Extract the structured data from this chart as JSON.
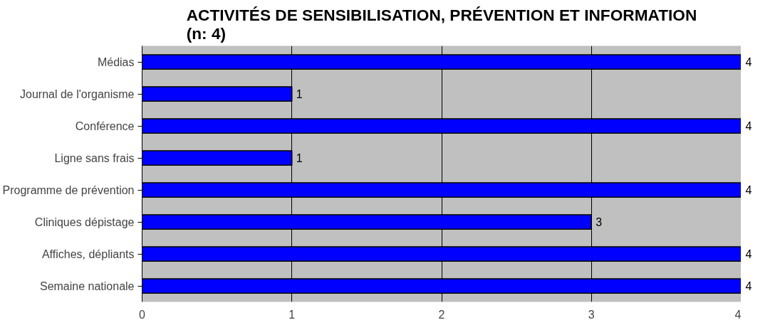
{
  "chart_data": {
    "type": "bar",
    "orientation": "horizontal",
    "title": "ACTIVITÉS DE SENSIBILISATION, PRÉVENTION ET INFORMATION\n(n: 4)",
    "categories": [
      "Médias",
      "Journal de l'organisme",
      "Conférence",
      "Ligne sans frais",
      "Programme de prévention",
      "Cliniques dépistage",
      "Affiches, dépliants",
      "Semaine nationale"
    ],
    "values": [
      4,
      1,
      4,
      1,
      4,
      3,
      4,
      4
    ],
    "color": "#0000ff",
    "xlim": [
      0,
      4
    ],
    "xticks": [
      0,
      1,
      2,
      3,
      4
    ],
    "grid": "x",
    "data_labels": true,
    "legend": false
  }
}
